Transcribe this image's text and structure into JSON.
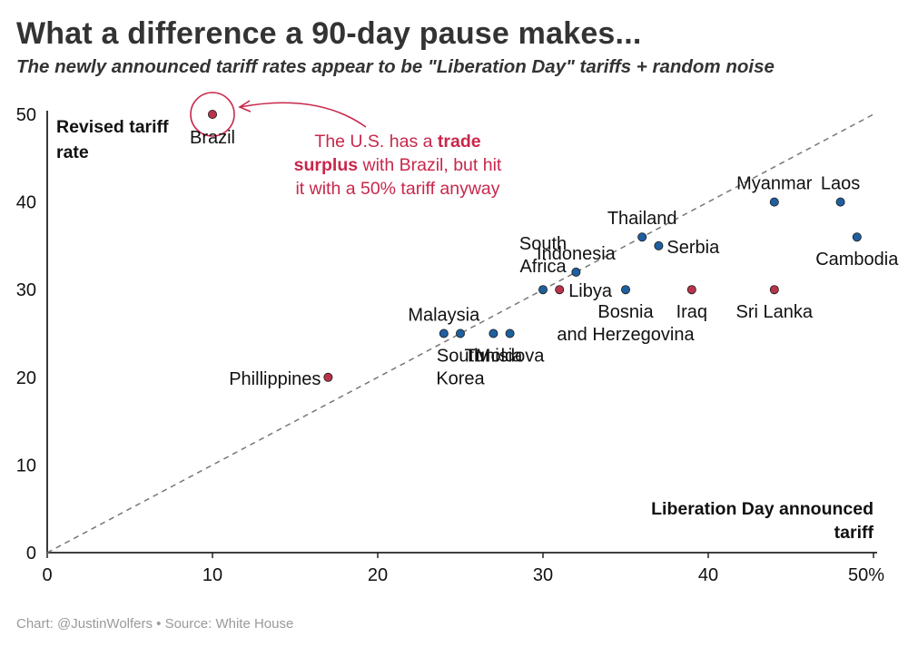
{
  "header": {
    "title": "What a difference a 90-day pause makes...",
    "subtitle": "The newly announced tariff rates appear to be \"Liberation Day\" tariffs + random noise"
  },
  "footer": {
    "credit": "Chart: @JustinWolfers • Source: White House"
  },
  "annotation": {
    "pre": "The U.S. has a ",
    "bold1": "trade",
    "bold2": "surplus",
    "post": " with Brazil, but hit it with a 50% tariff anyway"
  },
  "chart_data": {
    "type": "scatter",
    "title": "What a difference a 90-day pause makes...",
    "subtitle": "The newly announced tariff rates appear to be \"Liberation Day\" tariffs + random noise",
    "xlabel": "Liberation Day announced tariff",
    "ylabel": "Revised tariff rate",
    "xlim": [
      0,
      50
    ],
    "ylim": [
      0,
      50
    ],
    "x_ticks": [
      "0",
      "10",
      "20",
      "30",
      "40",
      "50%"
    ],
    "y_ticks": [
      "0",
      "10",
      "20",
      "30",
      "40",
      "50"
    ],
    "reference_line": "y = x (dashed)",
    "colors": {
      "deficit": "#1f5f9e",
      "surplus": "#b8334b",
      "annotation": "#c8274b"
    },
    "points": [
      {
        "label": "Brazil",
        "x": 10,
        "y": 50,
        "group": "surplus"
      },
      {
        "label": "Phillippines",
        "x": 17,
        "y": 20,
        "group": "surplus"
      },
      {
        "label": "Malaysia",
        "x": 24,
        "y": 25,
        "group": "deficit"
      },
      {
        "label": "South Korea",
        "x": 25,
        "y": 25,
        "group": "deficit"
      },
      {
        "label": "Tunisia",
        "x": 27,
        "y": 25,
        "group": "deficit"
      },
      {
        "label": "Moldova",
        "x": 28,
        "y": 25,
        "group": "deficit"
      },
      {
        "label": "South Africa",
        "x": 30,
        "y": 30,
        "group": "deficit"
      },
      {
        "label": "Libya",
        "x": 31,
        "y": 30,
        "group": "surplus"
      },
      {
        "label": "Indonesia",
        "x": 32,
        "y": 32,
        "group": "deficit"
      },
      {
        "label": "Bosnia and Herzegovina",
        "x": 35,
        "y": 30,
        "group": "deficit"
      },
      {
        "label": "Thailand",
        "x": 36,
        "y": 36,
        "group": "deficit"
      },
      {
        "label": "Serbia",
        "x": 37,
        "y": 35,
        "group": "deficit"
      },
      {
        "label": "Iraq",
        "x": 39,
        "y": 30,
        "group": "surplus"
      },
      {
        "label": "Sri Lanka",
        "x": 44,
        "y": 30,
        "group": "surplus"
      },
      {
        "label": "Myanmar",
        "x": 44,
        "y": 40,
        "group": "deficit"
      },
      {
        "label": "Laos",
        "x": 48,
        "y": 40,
        "group": "deficit"
      },
      {
        "label": "Cambodia",
        "x": 49,
        "y": 36,
        "group": "deficit"
      }
    ]
  }
}
